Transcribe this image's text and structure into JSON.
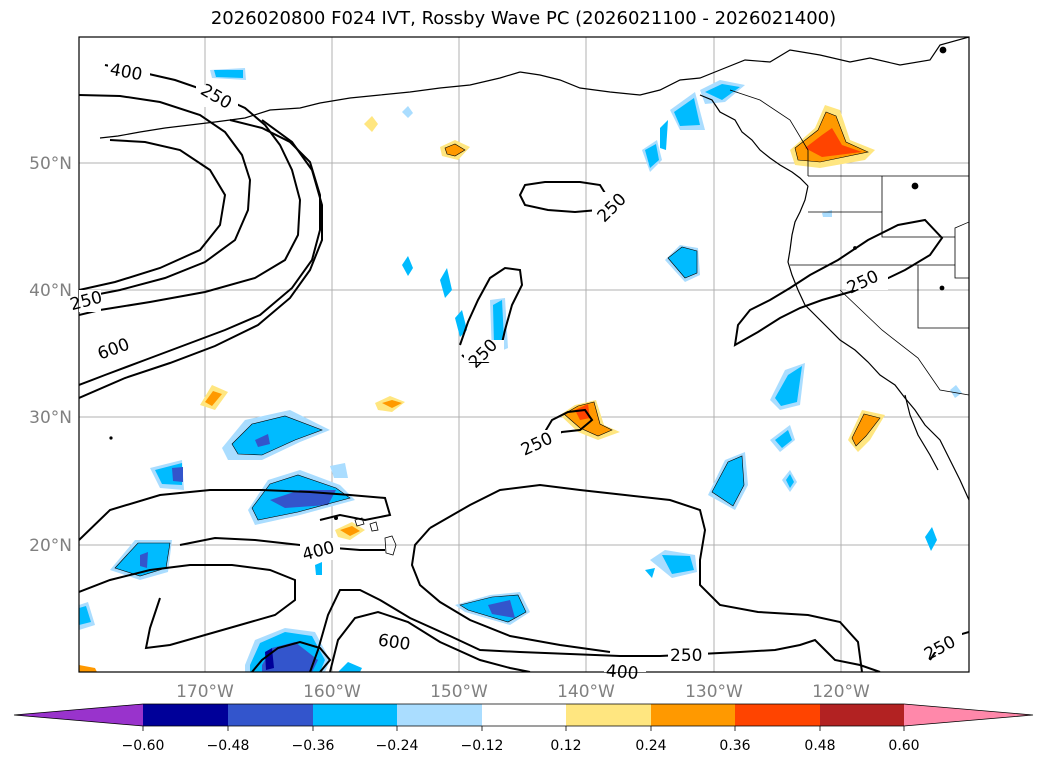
{
  "title": "2026020800 F024 IVT, Rossby Wave PC (2026021100 - 2026021400)",
  "axes": {
    "lat_labels": [
      "50°N",
      "40°N",
      "30°N",
      "20°N"
    ],
    "lon_labels": [
      "170°W",
      "160°W",
      "150°W",
      "140°W",
      "130°W",
      "120°W"
    ]
  },
  "ivt_contour_labels": [
    "400",
    "250",
    "250",
    "600",
    "250",
    "250",
    "250",
    "400",
    "250",
    "600",
    "400",
    "250",
    "250"
  ],
  "colorbar": {
    "ticks": [
      "−0.60",
      "−0.48",
      "−0.36",
      "−0.24",
      "−0.12",
      "0.12",
      "0.24",
      "0.36",
      "0.48",
      "0.60"
    ],
    "colors": [
      "#9933cc",
      "#000099",
      "#3355cc",
      "#00bbff",
      "#aaddff",
      "#ffffff",
      "#ffe680",
      "#ff9900",
      "#ff4400",
      "#b22222",
      "#ff88aa"
    ]
  },
  "styles": {
    "grid_color": "#b0b0b0",
    "coast_color": "#000000",
    "contour_color": "#000000"
  }
}
